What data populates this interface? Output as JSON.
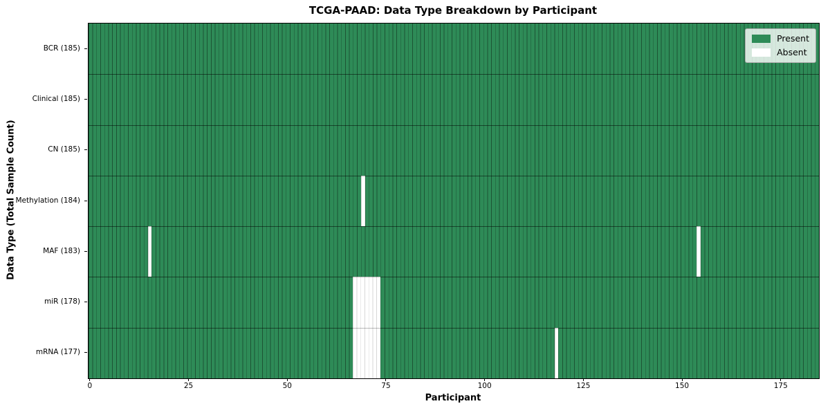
{
  "figure": {
    "title": "TCGA-PAAD: Data Type Breakdown by Participant",
    "xlabel": "Participant",
    "ylabel": "Data Type (Total Sample Count)"
  },
  "legend": {
    "present_label": "Present",
    "absent_label": "Absent"
  },
  "colors": {
    "present": "#2e8b57",
    "absent": "#ffffff"
  },
  "chart_data": {
    "type": "heatmap",
    "title": "TCGA-PAAD: Data Type Breakdown by Participant",
    "xlabel": "Participant",
    "ylabel": "Data Type (Total Sample Count)",
    "n_participants": 185,
    "x_range": [
      0,
      184
    ],
    "x_ticks": [
      0,
      25,
      50,
      75,
      100,
      125,
      150,
      175
    ],
    "legend_entries": [
      "Present",
      "Absent"
    ],
    "legend_position": "upper right",
    "grid": true,
    "rows": [
      {
        "name": "BCR",
        "label": "BCR (185)",
        "total_samples": 185,
        "absent_participants": []
      },
      {
        "name": "Clinical",
        "label": "Clinical (185)",
        "total_samples": 185,
        "absent_participants": []
      },
      {
        "name": "CN",
        "label": "CN (185)",
        "total_samples": 185,
        "absent_participants": []
      },
      {
        "name": "Methylation",
        "label": "Methylation (184)",
        "total_samples": 184,
        "absent_participants": [
          69
        ]
      },
      {
        "name": "MAF",
        "label": "MAF (183)",
        "total_samples": 183,
        "absent_participants": [
          15,
          154
        ]
      },
      {
        "name": "miR",
        "label": "miR (178)",
        "total_samples": 178,
        "absent_participants": [
          67,
          68,
          69,
          70,
          71,
          72,
          73
        ]
      },
      {
        "name": "mRNA",
        "label": "mRNA (177)",
        "total_samples": 177,
        "absent_participants": [
          67,
          68,
          69,
          70,
          71,
          72,
          73,
          118
        ]
      }
    ]
  }
}
